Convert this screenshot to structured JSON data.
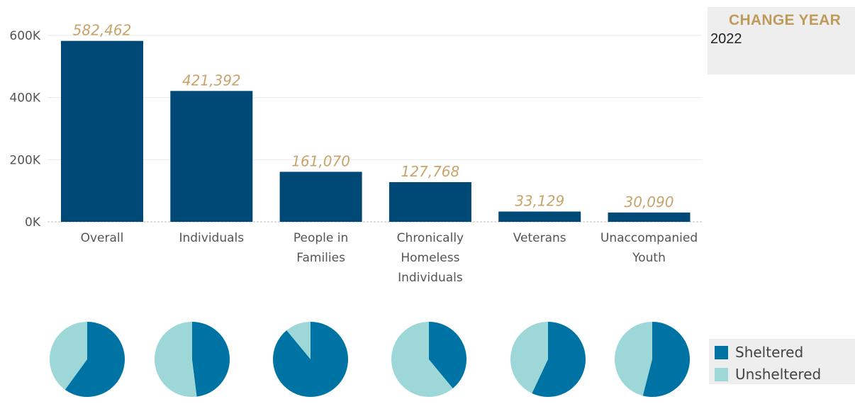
{
  "filter": {
    "title": "CHANGE YEAR",
    "value": "2022"
  },
  "colors": {
    "bar": "#004876",
    "sheltered": "#0073a5",
    "unsheltered": "#9dd7d8",
    "data_label": "#c9a46a"
  },
  "legend": [
    {
      "label": "Sheltered",
      "color": "#0073a5"
    },
    {
      "label": "Unsheltered",
      "color": "#9dd7d8"
    }
  ],
  "chart_data": [
    {
      "type": "bar",
      "categories": [
        "Overall",
        "Individuals",
        "People in Families",
        "Chronically Homeless Individuals",
        "Veterans",
        "Unaccompanied Youth"
      ],
      "category_lines": [
        [
          "Overall"
        ],
        [
          "Individuals"
        ],
        [
          "People in",
          "Families"
        ],
        [
          "Chronically",
          "Homeless",
          "Individuals"
        ],
        [
          "Veterans"
        ],
        [
          "Unaccompanied",
          "Youth"
        ]
      ],
      "values": [
        582462,
        421392,
        161070,
        127768,
        33129,
        30090
      ],
      "data_labels": [
        "582,462",
        "421,392",
        "161,070",
        "127,768",
        "33,129",
        "30,090"
      ],
      "yticks": [
        0,
        200000,
        400000,
        600000
      ],
      "ytick_labels": [
        "0K",
        "200K",
        "400K",
        "600K"
      ],
      "ylim": [
        0,
        630000
      ],
      "grid": true
    },
    {
      "type": "pie",
      "charts": [
        {
          "category": "Overall",
          "sheltered_share": 0.6,
          "unsheltered_share": 0.4
        },
        {
          "category": "Individuals",
          "sheltered_share": 0.48,
          "unsheltered_share": 0.52
        },
        {
          "category": "People in Families",
          "sheltered_share": 0.89,
          "unsheltered_share": 0.11
        },
        {
          "category": "Chronically Homeless Individuals",
          "sheltered_share": 0.39,
          "unsheltered_share": 0.61
        },
        {
          "category": "Veterans",
          "sheltered_share": 0.57,
          "unsheltered_share": 0.43
        },
        {
          "category": "Unaccompanied Youth",
          "sheltered_share": 0.54,
          "unsheltered_share": 0.46
        }
      ],
      "series": [
        {
          "name": "Sheltered"
        },
        {
          "name": "Unsheltered"
        }
      ]
    }
  ]
}
